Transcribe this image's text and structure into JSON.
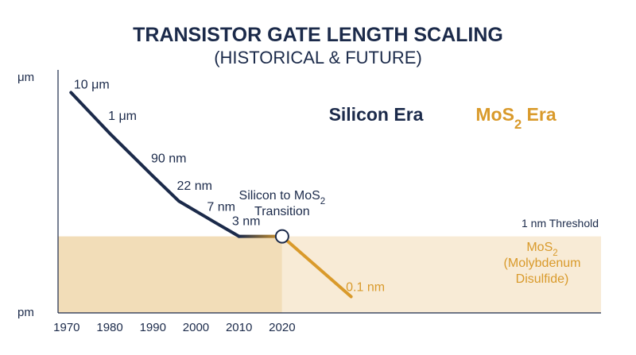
{
  "chart_data": {
    "type": "line",
    "title": "TRANSISTOR GATE LENGTH SCALING",
    "subtitle": "(HISTORICAL & FUTURE)",
    "ylabel_top": "μm",
    "ylabel_bottom": "pm",
    "x_ticks": [
      "1970",
      "1980",
      "1990",
      "2000",
      "2010",
      "2020"
    ],
    "xlim": [
      1968,
      2094
    ],
    "y_scale": "log",
    "ylim_nm": [
      0.04,
      30000
    ],
    "grid": false,
    "threshold": {
      "label": "1 nm Threshold",
      "value_nm": 1
    },
    "eras": [
      {
        "name": "Silicon Era",
        "color": "#1b2a4a"
      },
      {
        "name": "MoS2 Era",
        "label_base": "MoS",
        "label_sub": "2",
        "label_after": " Era",
        "color": "#d99a2b"
      }
    ],
    "series": [
      {
        "color": "#1b2a4a",
        "points": [
          {
            "x": 1971,
            "y_nm": 10000,
            "label": "10 μm"
          },
          {
            "x": 1980,
            "y_nm": 1000,
            "label": "1 μm"
          },
          {
            "x": 1990,
            "y_nm": 90,
            "label": "90 nm"
          },
          {
            "x": 1996,
            "y_nm": 22,
            "label": "22 nm"
          },
          {
            "x": 2004,
            "y_nm": 7,
            "label": "7 nm"
          },
          {
            "x": 2010,
            "y_nm": 3,
            "label": "3 nm"
          }
        ]
      },
      {
        "color": "#d99a2b",
        "points": [
          {
            "x": 2010,
            "y_nm": 3
          },
          {
            "x": 2020,
            "y_nm": 3
          },
          {
            "x": 2036,
            "y_nm": 0.1,
            "label": "0.1 nm"
          }
        ]
      }
    ],
    "transition": {
      "x": 2020,
      "y_nm": 3,
      "line1_base": "Silicon to MoS",
      "line1_sub": "2",
      "line2": "Transition"
    },
    "mos2_label": {
      "line1_base": "MoS",
      "line1_sub": "2",
      "line2": "(Molybdenum",
      "line3": "Disulfide)"
    }
  }
}
